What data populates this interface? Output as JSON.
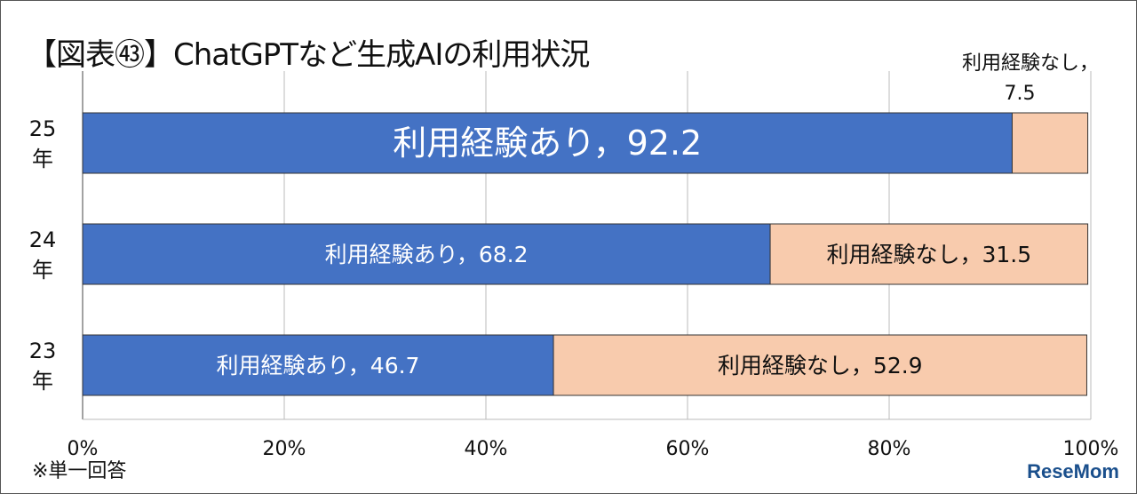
{
  "title": "【図表㊸】ChatGPTなど生成AIの利用状況",
  "note": "※単一回答",
  "watermark": "ReseMom",
  "chart_data": {
    "type": "bar",
    "orientation": "horizontal",
    "stacked": true,
    "categories": [
      "25年",
      "24年",
      "23年"
    ],
    "series": [
      {
        "name": "利用経験あり",
        "values": [
          92.2,
          68.2,
          46.7
        ],
        "color": "#4472C4"
      },
      {
        "name": "利用経験なし",
        "values": [
          7.5,
          31.5,
          52.9
        ],
        "color": "#F8CBAD"
      }
    ],
    "data_labels": [
      [
        "利用経験あり，92.2",
        "利用経験あり，68.2",
        "利用経験あり，46.7"
      ],
      [
        "利用経験なし，",
        "利用経験なし，31.5",
        "利用経験なし，52.9"
      ]
    ],
    "outside_label_value": "7.5",
    "xlim": [
      0,
      100
    ],
    "xticks": [
      "0%",
      "20%",
      "40%",
      "60%",
      "80%",
      "100%"
    ],
    "grid": true,
    "legend": "none"
  }
}
